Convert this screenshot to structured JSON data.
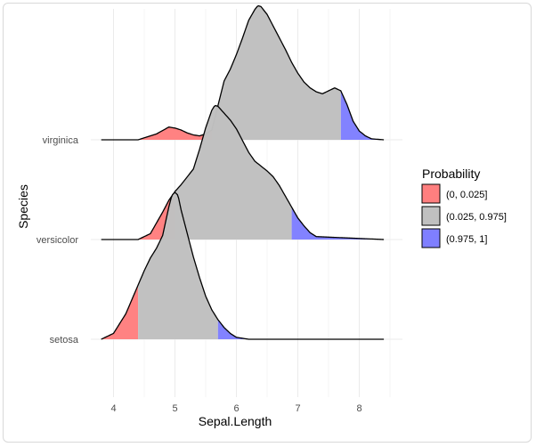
{
  "chart_data": {
    "type": "ridgeline_density",
    "xlabel": "Sepal.Length",
    "ylabel": "Species",
    "x_ticks": [
      "4",
      "5",
      "6",
      "7",
      "8"
    ],
    "xlim": [
      3.8,
      8.4
    ],
    "grid": "vertical major and minor lines",
    "categories": [
      "setosa",
      "versicolor",
      "virginica"
    ],
    "density_curves": [
      {
        "name": "setosa",
        "x": [
          3.8,
          4.0,
          4.2,
          4.35,
          4.5,
          4.6,
          4.7,
          4.8,
          4.9,
          4.95,
          5.0,
          5.05,
          5.1,
          5.2,
          5.3,
          5.4,
          5.5,
          5.6,
          5.7,
          5.8,
          5.9,
          6.0,
          6.2,
          8.4
        ],
        "density": [
          0.0,
          0.06,
          0.26,
          0.48,
          0.7,
          0.83,
          0.93,
          1.06,
          1.35,
          1.47,
          1.5,
          1.47,
          1.32,
          1.08,
          0.84,
          0.63,
          0.44,
          0.3,
          0.2,
          0.12,
          0.06,
          0.02,
          0.0,
          0.0
        ],
        "lower_quantile_x": 4.4,
        "upper_quantile_x": 5.7
      },
      {
        "name": "versicolor",
        "x": [
          3.8,
          4.4,
          4.6,
          4.8,
          4.9,
          5.0,
          5.1,
          5.2,
          5.3,
          5.4,
          5.5,
          5.6,
          5.65,
          5.7,
          5.8,
          5.9,
          6.0,
          6.1,
          6.2,
          6.3,
          6.4,
          6.5,
          6.6,
          6.7,
          6.8,
          6.9,
          7.0,
          7.1,
          7.2,
          7.3,
          8.4
        ],
        "density": [
          0.0,
          0.0,
          0.06,
          0.28,
          0.4,
          0.49,
          0.56,
          0.64,
          0.72,
          0.92,
          1.14,
          1.32,
          1.37,
          1.36,
          1.29,
          1.22,
          1.13,
          1.01,
          0.89,
          0.8,
          0.75,
          0.7,
          0.64,
          0.55,
          0.44,
          0.33,
          0.22,
          0.14,
          0.07,
          0.03,
          0.0
        ],
        "lower_quantile_x": 5.0,
        "upper_quantile_x": 6.9
      },
      {
        "name": "virginica",
        "x": [
          3.8,
          4.4,
          4.7,
          4.9,
          5.0,
          5.1,
          5.2,
          5.3,
          5.4,
          5.5,
          5.6,
          5.8,
          5.9,
          6.0,
          6.1,
          6.2,
          6.3,
          6.35,
          6.4,
          6.5,
          6.6,
          6.7,
          6.8,
          6.9,
          7.0,
          7.1,
          7.2,
          7.3,
          7.4,
          7.5,
          7.6,
          7.7,
          7.8,
          7.9,
          8.0,
          8.1,
          8.2,
          8.4
        ],
        "density": [
          0.0,
          0.0,
          0.06,
          0.13,
          0.12,
          0.1,
          0.07,
          0.05,
          0.04,
          0.06,
          0.1,
          0.6,
          0.72,
          0.87,
          1.04,
          1.22,
          1.33,
          1.37,
          1.36,
          1.28,
          1.16,
          1.04,
          0.92,
          0.79,
          0.68,
          0.59,
          0.53,
          0.49,
          0.47,
          0.5,
          0.53,
          0.5,
          0.36,
          0.19,
          0.09,
          0.04,
          0.01,
          0.0
        ],
        "lower_quantile_x": 5.6,
        "upper_quantile_x": 7.7
      }
    ],
    "legend": {
      "title": "Probability",
      "position": "right",
      "items": [
        {
          "label": "(0, 0.025]",
          "color": "#ff7f7f"
        },
        {
          "label": "(0.025, 0.975]",
          "color": "#c0c0c0"
        },
        {
          "label": "(0.975, 1]",
          "color": "#7f7fff"
        }
      ]
    }
  }
}
